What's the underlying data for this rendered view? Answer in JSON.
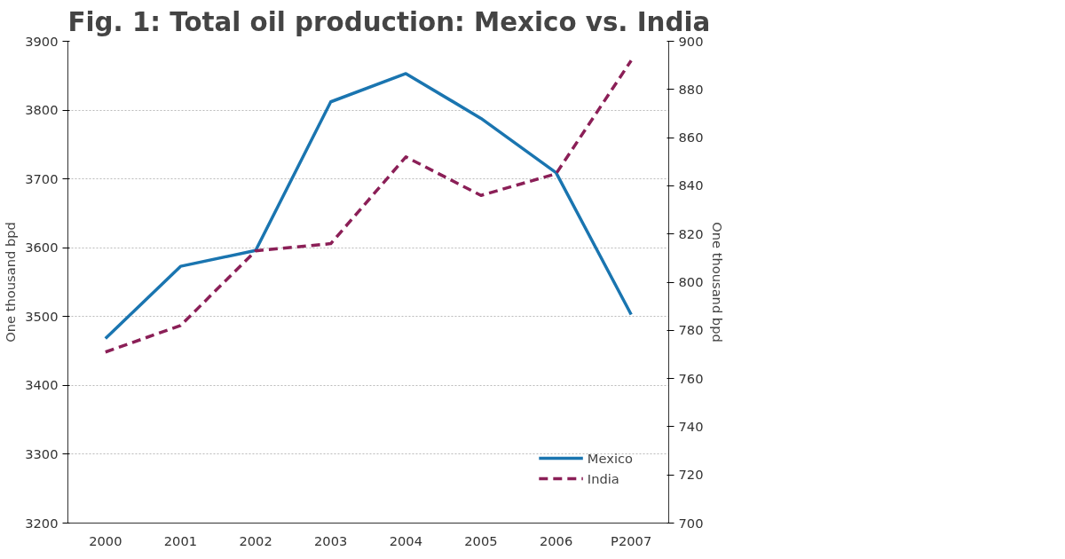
{
  "chart_data": {
    "type": "line",
    "title": "Fig. 1: Total oil production: Mexico vs. India",
    "ylabel": "One thousand bpd",
    "y2label": "One thousand bpd",
    "categories": [
      "2000",
      "2001",
      "2002",
      "2003",
      "2004",
      "2005",
      "2006",
      "P2007"
    ],
    "series": [
      {
        "name": "Mexico",
        "color": "#1a75b0",
        "values": [
          3468,
          3573,
          3596,
          3812,
          3853,
          3788,
          3709,
          3503
        ]
      },
      {
        "name": "India",
        "color": "#8b1f57",
        "axis": "y2",
        "line_style": "dashed",
        "values": [
          771,
          782,
          813,
          816,
          852,
          836,
          845,
          892
        ]
      }
    ],
    "ylim": [
      3200,
      3900
    ],
    "yticks": [
      3200,
      3300,
      3400,
      3500,
      3600,
      3700,
      3800,
      3900
    ],
    "y2lim": [
      700,
      900
    ],
    "y2ticks": [
      700,
      720,
      740,
      760,
      780,
      800,
      820,
      840,
      860,
      880,
      900
    ],
    "grid": "y",
    "legend": "bottom right",
    "line_style": "solid",
    "marker": "none"
  }
}
